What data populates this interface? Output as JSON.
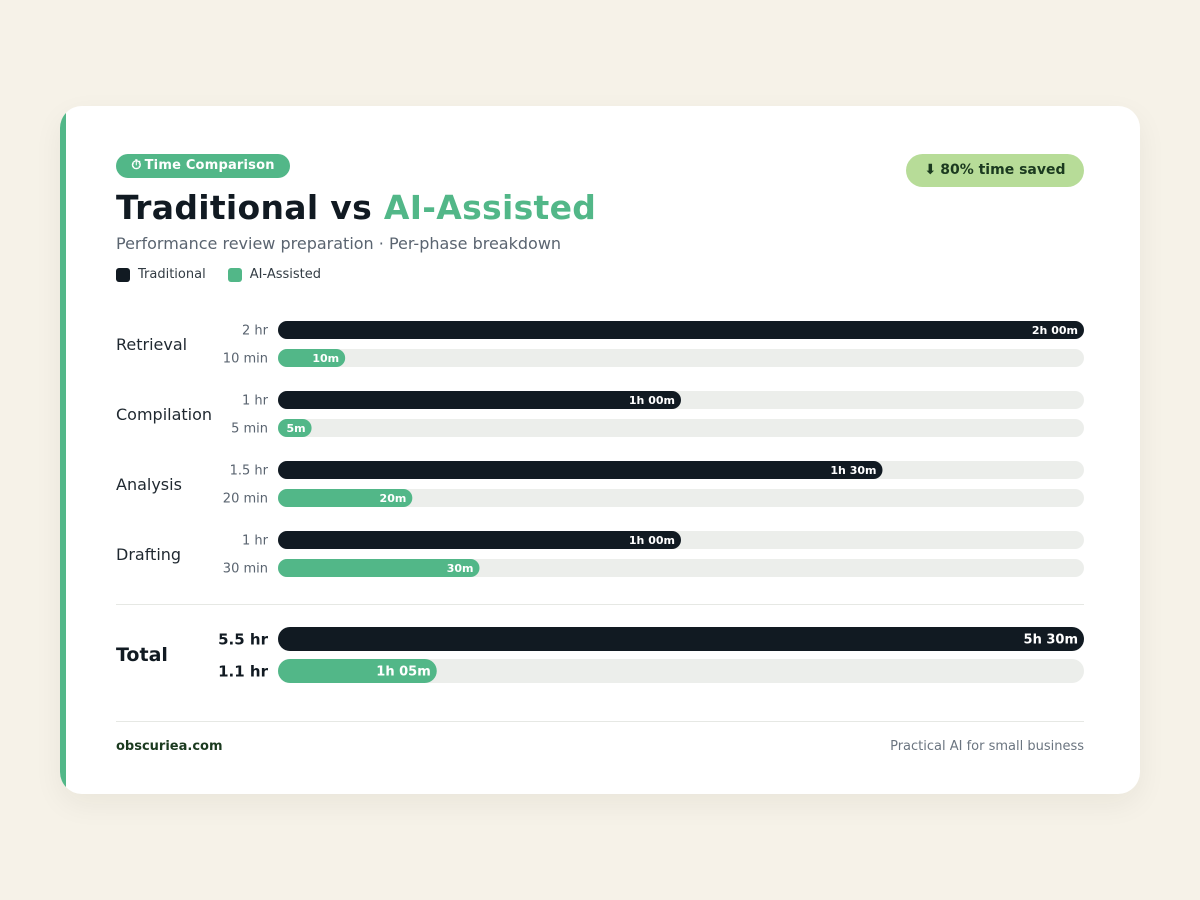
{
  "badge": {
    "icon": "⏱",
    "label": "Time Comparison"
  },
  "savings": {
    "icon": "⬇",
    "label": "80% time saved"
  },
  "title": {
    "part1": "Traditional",
    "joiner": "vs",
    "part2": "AI-Assisted"
  },
  "subtitle": "Performance review preparation · Per-phase breakdown",
  "legend": [
    {
      "label": "Traditional",
      "color": "#111a22"
    },
    {
      "label": "AI-Assisted",
      "color": "#52b788"
    }
  ],
  "colors": {
    "traditional": "#111a22",
    "ai": "#52b788",
    "track": "#eceeeb",
    "accent": "#52b788"
  },
  "chart_data": {
    "type": "bar",
    "orientation": "horizontal",
    "unit": "minutes",
    "xlim": [
      0,
      120
    ],
    "categories": [
      "Retrieval",
      "Compilation",
      "Analysis",
      "Drafting"
    ],
    "series": [
      {
        "name": "Traditional",
        "values": [
          120,
          60,
          90,
          60
        ],
        "side_labels": [
          "2 hr",
          "1 hr",
          "1.5 hr",
          "1 hr"
        ],
        "bar_labels": [
          "2h 00m",
          "1h 00m",
          "1h 30m",
          "1h 00m"
        ]
      },
      {
        "name": "AI-Assisted",
        "values": [
          10,
          5,
          20,
          30
        ],
        "side_labels": [
          "10 min",
          "5 min",
          "20 min",
          "30 min"
        ],
        "bar_labels": [
          "10m",
          "5m",
          "20m",
          "30m"
        ]
      }
    ],
    "total": {
      "label": "Total",
      "xlim": [
        0,
        330
      ],
      "traditional": {
        "value": 330,
        "side_label": "5.5 hr",
        "bar_label": "5h 30m"
      },
      "ai": {
        "value": 65,
        "side_label": "1.1 hr",
        "bar_label": "1h 05m"
      }
    }
  },
  "footer": {
    "brand": "obscuriea.com",
    "tagline": "Practical AI for small business"
  }
}
